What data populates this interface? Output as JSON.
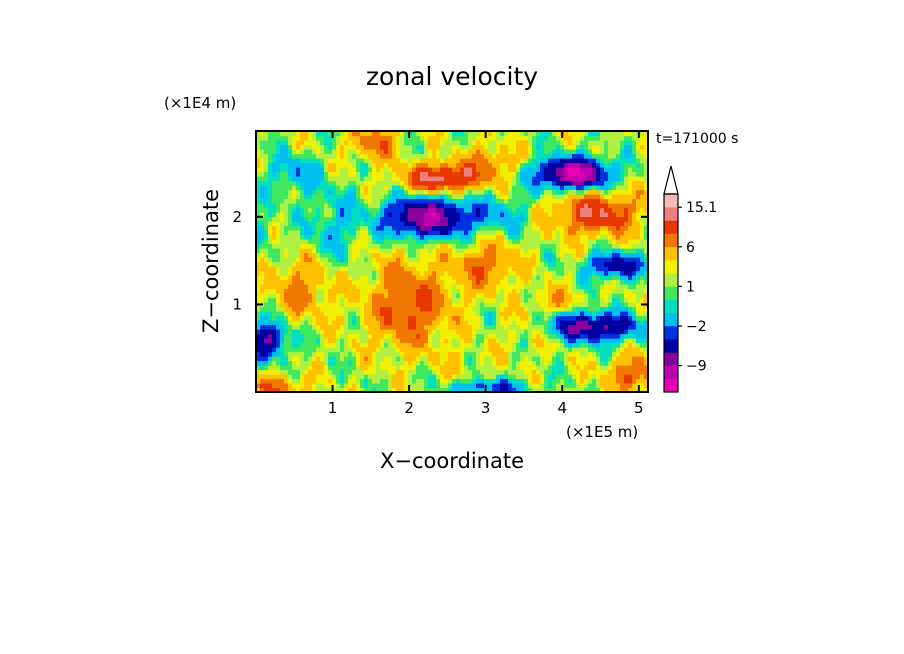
{
  "chart_data": {
    "type": "heatmap",
    "title": "zonal velocity",
    "xlabel": "X−coordinate",
    "ylabel": "Z−coordinate",
    "x_scale_label": "(×1E5 m)",
    "y_scale_label": "(×1E4 m)",
    "time_label": "t=171000 s",
    "xlim": [
      0,
      5.12
    ],
    "ylim": [
      0,
      2.98
    ],
    "xticks": [
      1,
      2,
      3,
      4,
      5
    ],
    "yticks": [
      1,
      2
    ],
    "grid": false,
    "colorbar": {
      "levels": [
        -15,
        -12,
        -9,
        -6,
        -4,
        -2,
        -1,
        0,
        1,
        2,
        4,
        6,
        9,
        12,
        15.1
      ],
      "colors": [
        "#e800b4",
        "#c000b0",
        "#8a009a",
        "#0000a0",
        "#0030e0",
        "#00c0f0",
        "#00e0c0",
        "#40e860",
        "#b0f040",
        "#f0f000",
        "#ffc000",
        "#f07800",
        "#e83800",
        "#f08080",
        "#f8b8b8"
      ],
      "labels": [
        "15.1",
        "6",
        "1",
        "−2",
        "−9"
      ],
      "extend_max": true
    }
  }
}
